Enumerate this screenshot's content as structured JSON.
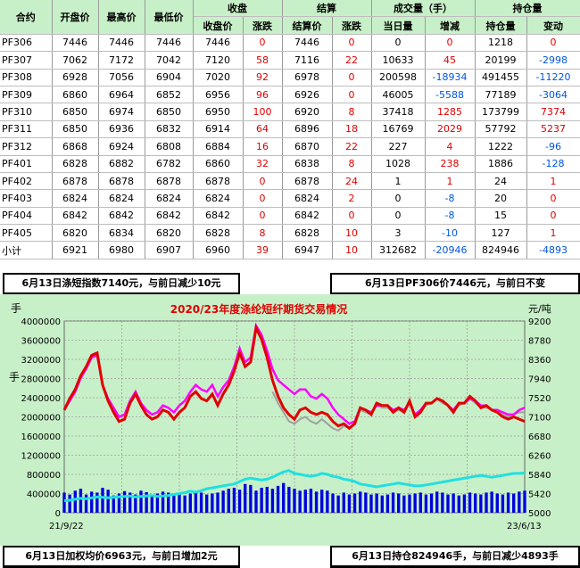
{
  "table": {
    "group_headers": {
      "settle_close": "收盘",
      "settle": "结算",
      "volume": "成交量（手）",
      "oi": "持仓量"
    },
    "columns": [
      "合约",
      "开盘价",
      "最高价",
      "最低价",
      "收盘价",
      "涨跌",
      "结算价",
      "涨跌",
      "当日量",
      "增减",
      "持仓量",
      "变动"
    ],
    "rows": [
      [
        "PF306",
        "7446",
        "7446",
        "7446",
        "7446",
        "0",
        "7446",
        "0",
        "0",
        "0",
        "1218",
        "0"
      ],
      [
        "PF307",
        "7062",
        "7172",
        "7042",
        "7120",
        "58",
        "7116",
        "22",
        "10633",
        "45",
        "20199",
        "-2998"
      ],
      [
        "PF308",
        "6928",
        "7056",
        "6904",
        "7020",
        "92",
        "6978",
        "0",
        "200598",
        "-18934",
        "491455",
        "-11220"
      ],
      [
        "PF309",
        "6860",
        "6964",
        "6852",
        "6956",
        "96",
        "6926",
        "0",
        "46005",
        "-5588",
        "77189",
        "-3064"
      ],
      [
        "PF310",
        "6850",
        "6974",
        "6850",
        "6950",
        "100",
        "6920",
        "8",
        "37418",
        "1285",
        "173799",
        "7374"
      ],
      [
        "PF311",
        "6850",
        "6936",
        "6832",
        "6914",
        "64",
        "6896",
        "18",
        "16769",
        "2029",
        "57792",
        "5237"
      ],
      [
        "PF312",
        "6868",
        "6924",
        "6808",
        "6884",
        "16",
        "6870",
        "22",
        "227",
        "4",
        "1222",
        "-96"
      ],
      [
        "PF401",
        "6828",
        "6882",
        "6782",
        "6860",
        "32",
        "6838",
        "8",
        "1028",
        "238",
        "1886",
        "-128"
      ],
      [
        "PF402",
        "6878",
        "6878",
        "6878",
        "6878",
        "0",
        "6878",
        "24",
        "1",
        "1",
        "24",
        "1"
      ],
      [
        "PF403",
        "6824",
        "6824",
        "6824",
        "6824",
        "0",
        "6824",
        "2",
        "0",
        "-8",
        "20",
        "0"
      ],
      [
        "PF404",
        "6842",
        "6842",
        "6842",
        "6842",
        "0",
        "6842",
        "0",
        "0",
        "-8",
        "15",
        "0"
      ],
      [
        "PF405",
        "6820",
        "6834",
        "6820",
        "6828",
        "8",
        "6828",
        "10",
        "3",
        "-10",
        "127",
        "1"
      ],
      [
        "小计",
        "6921",
        "6980",
        "6907",
        "6960",
        "39",
        "6947",
        "10",
        "312682",
        "-20946",
        "824946",
        "-4893"
      ]
    ]
  },
  "notes": {
    "top_left": "6月13日涤短指数7140元，与前日减少10元",
    "top_right": "6月13日PF306价7446元，与前日不变",
    "bottom_left": "6月13日加权均价6963元，与前日增加2元",
    "bottom_right": "6月13日持仓824946手，与前日减少4893手"
  },
  "colors": {
    "header_bg": "#c8f0c8",
    "chart_bg": "#c8f0c8",
    "red": "#e00000",
    "magenta": "#ff00ff",
    "gray": "#a0a0a0",
    "cyan": "#20e0e0",
    "blue": "#0000e0"
  },
  "chart_data": {
    "type": "line",
    "title": "2020/23年度涤纶短纤期货交易情况",
    "ylabel_left": "手",
    "ylabel_right": "元/吨",
    "left_ticks": [
      "4000000",
      "3600000",
      "3200000",
      "2800000",
      "2400000",
      "2000000",
      "1600000",
      "1200000",
      "800000",
      "400000",
      "0"
    ],
    "right_ticks": [
      "9200",
      "8780",
      "8360",
      "7940",
      "7520",
      "7100",
      "6680",
      "6260",
      "5840",
      "5420",
      "5000"
    ],
    "ylim_left": [
      0,
      4000000
    ],
    "ylim_right": [
      5000,
      9200
    ],
    "x_start": "21/9/22",
    "x_end": "23/6/13",
    "grid": true,
    "series": [
      {
        "key": "red",
        "values": [
          7250,
          7500,
          7700,
          8000,
          8200,
          8450,
          8500,
          7800,
          7450,
          7200,
          7000,
          7050,
          7400,
          7600,
          7350,
          7150,
          7050,
          7100,
          7250,
          7200,
          7050,
          7200,
          7300,
          7550,
          7650,
          7500,
          7450,
          7600,
          7350,
          7600,
          7800,
          8100,
          8500,
          8200,
          8300,
          9050,
          8800,
          8400,
          7900,
          7550,
          7300,
          7150,
          7050,
          7250,
          7300,
          7200,
          7150,
          7200,
          7150,
          7000,
          6900,
          6950,
          6850,
          6950,
          7300,
          7250,
          7150,
          7400,
          7350,
          7350,
          7200,
          7300,
          7200,
          7450,
          7100,
          7200,
          7400,
          7400,
          7500,
          7450,
          7350,
          7200,
          7400,
          7400,
          7550,
          7450,
          7300,
          7350,
          7250,
          7200,
          7100,
          7050,
          7100,
          7050,
          7000
        ]
      },
      {
        "key": "magenta",
        "values": [
          7250,
          7450,
          7650,
          7950,
          8150,
          8400,
          8450,
          7800,
          7500,
          7300,
          7100,
          7150,
          7450,
          7650,
          7400,
          7250,
          7150,
          7200,
          7350,
          7300,
          7200,
          7350,
          7450,
          7650,
          7800,
          7700,
          7650,
          7800,
          7550,
          7750,
          7900,
          8200,
          8600,
          8300,
          8400,
          9100,
          8900,
          8550,
          8150,
          7900,
          7800,
          7700,
          7600,
          7700,
          7700,
          7550,
          7500,
          7600,
          7500,
          7300,
          7150,
          7050,
          6950,
          7000,
          7300,
          7250,
          7200,
          7350,
          7350,
          7350,
          7250,
          7300,
          7250,
          7400,
          7150,
          7250,
          7400,
          7400,
          7500,
          7450,
          7350,
          7250,
          7400,
          7400,
          7500,
          7450,
          7350,
          7350,
          7250,
          7250,
          7200,
          7150,
          7150,
          7250,
          7300
        ]
      },
      {
        "key": "gray",
        "values": [
          null,
          null,
          null,
          null,
          null,
          null,
          null,
          null,
          null,
          null,
          null,
          null,
          null,
          null,
          null,
          null,
          null,
          null,
          null,
          null,
          null,
          null,
          null,
          null,
          null,
          null,
          null,
          null,
          null,
          null,
          null,
          null,
          null,
          null,
          null,
          null,
          null,
          null,
          7650,
          7400,
          7200,
          7000,
          6950,
          7050,
          7100,
          7000,
          6950,
          7050,
          6950,
          6850,
          6800,
          6900,
          6850,
          6950,
          7250,
          7200,
          7150,
          7350,
          7300,
          7300,
          7200,
          7250,
          7200,
          7400,
          7100,
          7200,
          7350,
          7400,
          7500,
          7400,
          7350,
          7200,
          7350,
          7400,
          7500,
          7400,
          7300,
          7300,
          7250,
          7200,
          7150,
          7100,
          7150,
          7200,
          7200
        ]
      },
      {
        "key": "cyan",
        "values": [
          250000,
          260000,
          280000,
          300000,
          290000,
          310000,
          330000,
          320000,
          310000,
          320000,
          330000,
          340000,
          350000,
          330000,
          340000,
          350000,
          360000,
          340000,
          350000,
          360000,
          380000,
          400000,
          420000,
          450000,
          430000,
          460000,
          500000,
          520000,
          540000,
          560000,
          580000,
          600000,
          650000,
          700000,
          720000,
          700000,
          680000,
          700000,
          740000,
          800000,
          850000,
          880000,
          820000,
          800000,
          780000,
          760000,
          780000,
          820000,
          800000,
          760000,
          740000,
          700000,
          680000,
          650000,
          600000,
          580000,
          560000,
          540000,
          560000,
          580000,
          600000,
          620000,
          600000,
          580000,
          560000,
          560000,
          580000,
          600000,
          620000,
          640000,
          660000,
          680000,
          700000,
          720000,
          740000,
          760000,
          780000,
          760000,
          740000,
          760000,
          780000,
          800000,
          820000,
          820000,
          830000
        ]
      },
      {
        "key": "blue",
        "values": [
          420000,
          380000,
          460000,
          500000,
          380000,
          440000,
          420000,
          520000,
          480000,
          360000,
          400000,
          450000,
          420000,
          380000,
          460000,
          430000,
          380000,
          400000,
          440000,
          420000,
          390000,
          410000,
          360000,
          400000,
          430000,
          420000,
          380000,
          400000,
          420000,
          460000,
          500000,
          520000,
          480000,
          600000,
          580000,
          460000,
          520000,
          540000,
          500000,
          560000,
          620000,
          540000,
          500000,
          460000,
          480000,
          500000,
          440000,
          480000,
          460000,
          400000,
          360000,
          420000,
          380000,
          400000,
          440000,
          420000,
          380000,
          400000,
          360000,
          380000,
          420000,
          400000,
          360000,
          380000,
          400000,
          420000,
          380000,
          400000,
          440000,
          420000,
          380000,
          400000,
          360000,
          380000,
          420000,
          400000,
          380000,
          420000,
          440000,
          400000,
          380000,
          420000,
          400000,
          440000,
          460000
        ]
      }
    ]
  }
}
